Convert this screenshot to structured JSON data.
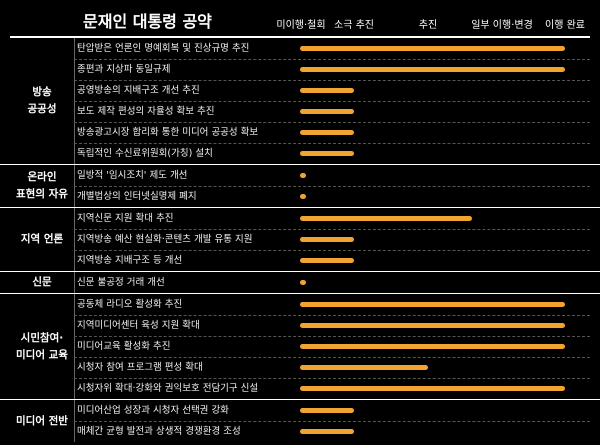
{
  "chart_data": {
    "type": "bar",
    "title": "문재인 대통령 공약",
    "stages": [
      "미이행·철회",
      "소극 추진",
      "추진",
      "일부 이행·변경",
      "이행 완료"
    ],
    "colors": {
      "bar": "#f2a42e",
      "background": "#000000"
    },
    "groups": [
      {
        "name": "방송\n공공성",
        "items": [
          {
            "label": "탄압받은 언론인 명예회복 및 진상규명 추진",
            "value": 4
          },
          {
            "label": "종편과 지상파 동일규제",
            "value": 4
          },
          {
            "label": "공영방송의 지배구조 개선 추진",
            "value": 1
          },
          {
            "label": "보도 제작 편성의 자율성 확보 추진",
            "value": 1
          },
          {
            "label": "방송광고시장 합리화 통한 미디어 공공성 확보",
            "value": 1
          },
          {
            "label": "독립적인 수신료위원회(가칭) 설치",
            "value": 1
          }
        ]
      },
      {
        "name": "온라인\n표현의 자유",
        "items": [
          {
            "label": "일방적 '임시조치' 제도 개선",
            "value": 0
          },
          {
            "label": "개별법상의 인터넷실명제 폐지",
            "value": 0
          }
        ]
      },
      {
        "name": "지역 언론",
        "items": [
          {
            "label": "지역신문 지원 확대 추진",
            "value": 2.6
          },
          {
            "label": "지역방송 예산 현실화·콘텐츠 개발 유통 지원",
            "value": 1
          },
          {
            "label": "지역방송 지배구조 등 개선",
            "value": 1
          }
        ]
      },
      {
        "name": "신문",
        "items": [
          {
            "label": "신문 불공정 거래 개선",
            "value": 0
          }
        ]
      },
      {
        "name": "시민참여·\n미디어 교육",
        "items": [
          {
            "label": "공동체 라디오 활성화 추진",
            "value": 4
          },
          {
            "label": "지역미디어센터 육성 지원 확대",
            "value": 4
          },
          {
            "label": "미디어교육 활성화 추진",
            "value": 4
          },
          {
            "label": "시청자 참여 프로그램 편성 확대",
            "value": 2
          },
          {
            "label": "시청자위 확대·강화와 권익보호 전담기구 신설",
            "value": 4
          }
        ]
      },
      {
        "name": "미디어 전반",
        "items": [
          {
            "label": "미디어산업 성장과 시청자 선택권 강화",
            "value": 1
          },
          {
            "label": "매체간 균형 발전과 상생적 경쟁환경 조성",
            "value": 1
          }
        ]
      }
    ]
  }
}
